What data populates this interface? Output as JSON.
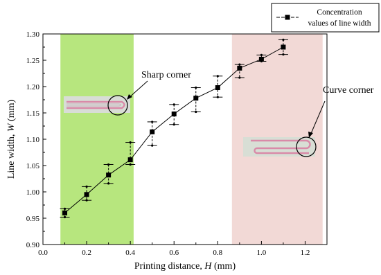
{
  "chart_data": {
    "type": "line",
    "title": "",
    "xlabel": {
      "prefix": "Printing distance, ",
      "var": "H",
      "unit": " (mm)"
    },
    "ylabel": {
      "prefix": "Line width, ",
      "var": "W",
      "unit": " (mm)"
    },
    "xlim": [
      0.0,
      1.3
    ],
    "ylim": [
      0.9,
      1.3
    ],
    "x_ticks": [
      "0.0",
      "0.2",
      "0.4",
      "0.6",
      "0.8",
      "1.0",
      "1.2"
    ],
    "y_ticks": [
      "0.90",
      "0.95",
      "1.00",
      "1.05",
      "1.10",
      "1.15",
      "1.20",
      "1.25",
      "1.30"
    ],
    "grid": false,
    "legend_position": "top-right",
    "series": [
      {
        "name": [
          "Concentration",
          "values of line width"
        ],
        "color": "#000000",
        "marker": "square",
        "x": [
          0.1,
          0.2,
          0.3,
          0.4,
          0.5,
          0.6,
          0.7,
          0.8,
          0.9,
          1.0,
          1.1
        ],
        "y": [
          0.96,
          0.995,
          1.032,
          1.061,
          1.114,
          1.148,
          1.178,
          1.198,
          1.235,
          1.252,
          1.275
        ],
        "err_low": [
          0.952,
          0.984,
          1.016,
          1.052,
          1.088,
          1.128,
          1.152,
          1.18,
          1.217,
          1.248,
          1.261
        ],
        "err_high": [
          0.968,
          1.01,
          1.052,
          1.094,
          1.133,
          1.166,
          1.198,
          1.22,
          1.242,
          1.26,
          1.289
        ]
      }
    ],
    "regions": [
      {
        "x_from": 0.08,
        "x_to": 0.415,
        "color": "#b7e67e"
      },
      {
        "x_from": 0.865,
        "x_to": 1.28,
        "color": "#f2d9d6"
      }
    ],
    "annotations": [
      {
        "text": "Sharp corner"
      },
      {
        "text": "Curve corner"
      }
    ]
  }
}
